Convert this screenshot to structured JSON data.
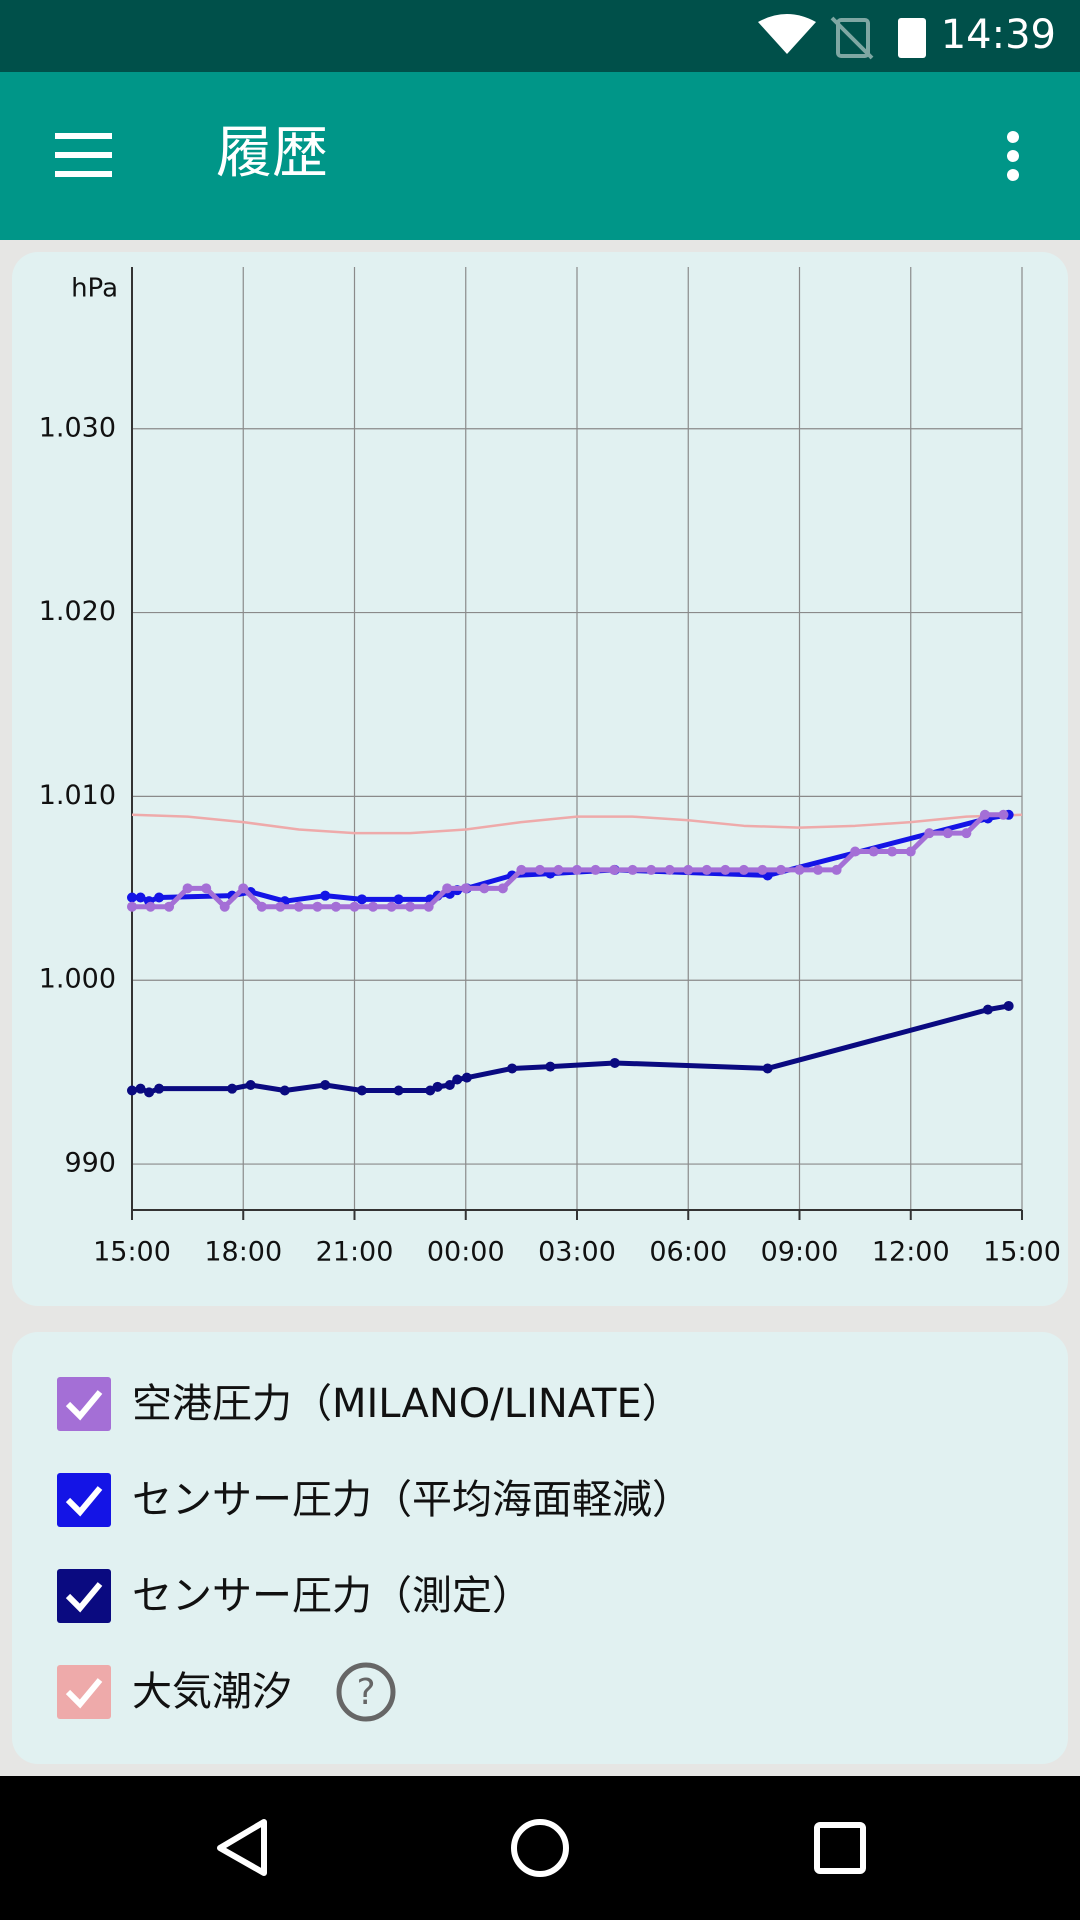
{
  "status_bar": {
    "time": "14:39"
  },
  "app_bar": {
    "title": "履歴"
  },
  "chart_data": {
    "type": "line",
    "y_label": "hPa",
    "xlim": [
      0,
      24
    ],
    "xticks": [
      {
        "value": 0,
        "label": "15:00"
      },
      {
        "value": 3,
        "label": "18:00"
      },
      {
        "value": 6,
        "label": "21:00"
      },
      {
        "value": 9,
        "label": "00:00"
      },
      {
        "value": 12,
        "label": "03:00"
      },
      {
        "value": 15,
        "label": "06:00"
      },
      {
        "value": 18,
        "label": "09:00"
      },
      {
        "value": 21,
        "label": "12:00"
      },
      {
        "value": 24,
        "label": "15:00"
      }
    ],
    "ylim": [
      987.5,
      1038.8
    ],
    "yticks": [
      990,
      {
        "value": 1000,
        "label": "1.000"
      },
      {
        "value": 1010,
        "label": "1.010"
      },
      {
        "value": 1020,
        "label": "1.020"
      },
      {
        "value": 1030,
        "label": "1.030"
      }
    ],
    "grid": true,
    "series": [
      {
        "name": "空港圧力（MILANO/LINATE）",
        "color": "#a46fd6",
        "markers": true,
        "x": [
          0,
          0.5,
          1,
          1.5,
          2,
          2.5,
          3,
          3.5,
          4,
          4.5,
          5,
          5.5,
          6,
          6.5,
          7,
          7.5,
          8,
          8.5,
          9,
          9.5,
          10,
          10.5,
          11,
          11.5,
          12,
          12.5,
          13,
          13.5,
          14,
          14.5,
          15,
          15.5,
          16,
          16.5,
          17,
          17.5,
          18,
          18.5,
          19,
          19.5,
          20,
          20.5,
          21,
          21.5,
          22,
          22.5,
          23,
          23.5
        ],
        "values": [
          1004,
          1004,
          1004,
          1005,
          1005,
          1004,
          1005,
          1004,
          1004,
          1004,
          1004,
          1004,
          1004,
          1004,
          1004,
          1004,
          1004,
          1005,
          1005,
          1005,
          1005,
          1006,
          1006,
          1006,
          1006,
          1006,
          1006,
          1006,
          1006,
          1006,
          1006,
          1006,
          1006,
          1006,
          1006,
          1006,
          1006,
          1006,
          1006,
          1007,
          1007,
          1007,
          1007,
          1008,
          1008,
          1008,
          1009,
          1009
        ]
      },
      {
        "name": "センサー圧力（平均海面軽減）",
        "color": "#1414e6",
        "markers": true,
        "x": [
          0,
          0.23,
          0.46,
          0.73,
          2.7,
          3.2,
          4.12,
          5.21,
          6.2,
          7.19,
          8.04,
          8.24,
          8.57,
          8.77,
          9.03,
          10.25,
          11.28,
          13.02,
          17.14,
          23.08,
          23.64
        ],
        "values": [
          1004.5,
          1004.5,
          1004.3,
          1004.5,
          1004.6,
          1004.8,
          1004.3,
          1004.6,
          1004.4,
          1004.4,
          1004.4,
          1004.6,
          1004.7,
          1004.9,
          1005,
          1005.7,
          1005.8,
          1006,
          1005.7,
          1008.8,
          1009
        ]
      },
      {
        "name": "センサー圧力（測定）",
        "color": "#0a0a80",
        "markers": true,
        "x": [
          0,
          0.23,
          0.46,
          0.73,
          2.7,
          3.2,
          4.12,
          5.21,
          6.2,
          7.19,
          8.04,
          8.24,
          8.57,
          8.77,
          9.03,
          10.25,
          11.28,
          13.02,
          17.14,
          23.08,
          23.64
        ],
        "values": [
          994,
          994.1,
          993.9,
          994.1,
          994.1,
          994.3,
          994,
          994.3,
          994,
          994,
          994,
          994.2,
          994.3,
          994.6,
          994.7,
          995.2,
          995.3,
          995.5,
          995.2,
          998.4,
          998.6
        ]
      },
      {
        "name": "大気潮汐",
        "color": "#eeaaaa",
        "markers": false,
        "x": [
          0,
          1.5,
          3,
          4.5,
          6,
          7.5,
          9,
          10.5,
          12,
          13.5,
          15,
          16.5,
          18,
          19.5,
          21,
          22.5,
          24
        ],
        "values": [
          1009,
          1008.9,
          1008.6,
          1008.2,
          1008,
          1008,
          1008.2,
          1008.6,
          1008.9,
          1008.9,
          1008.7,
          1008.4,
          1008.3,
          1008.4,
          1008.6,
          1008.9,
          1009
        ]
      }
    ]
  }
}
